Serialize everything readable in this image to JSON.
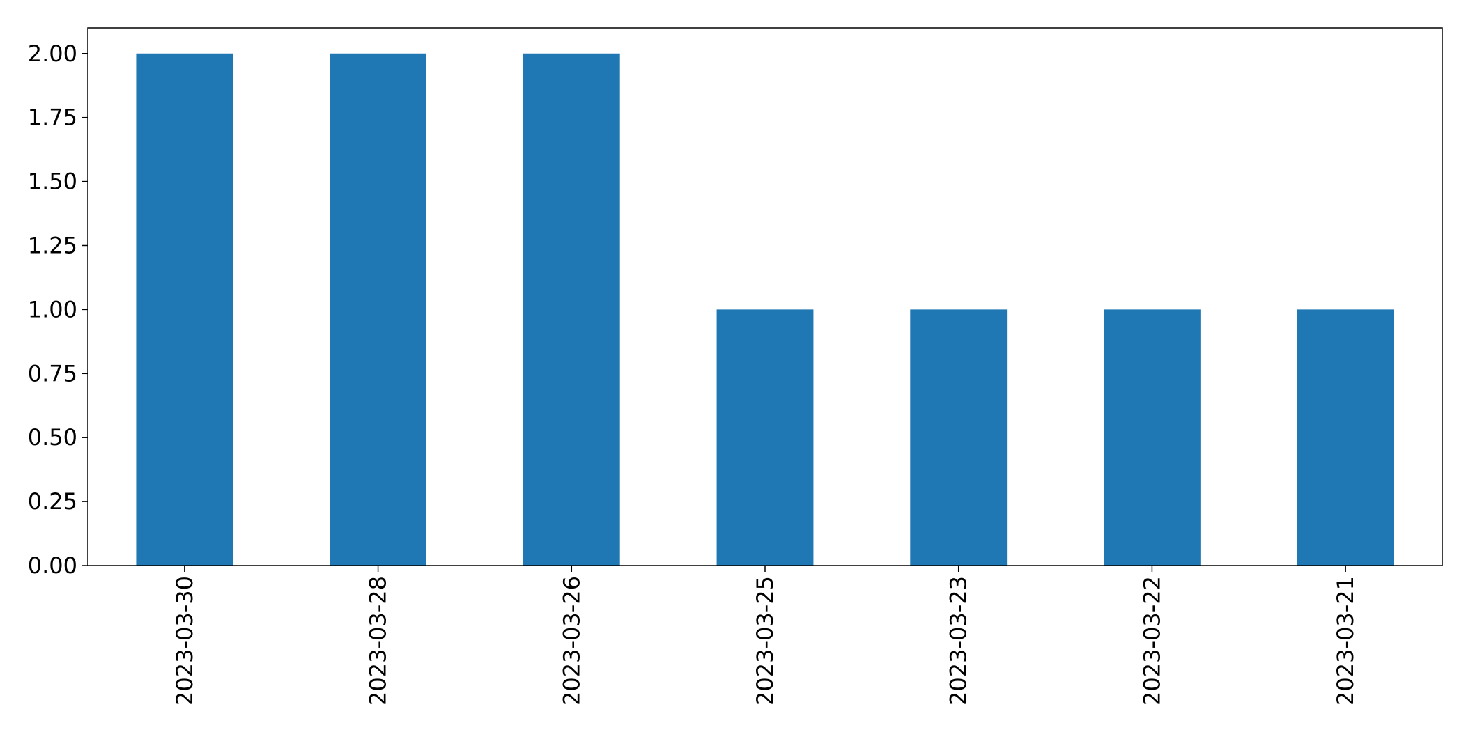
{
  "chart_data": {
    "type": "bar",
    "categories": [
      "2023-03-30",
      "2023-03-28",
      "2023-03-26",
      "2023-03-25",
      "2023-03-23",
      "2023-03-22",
      "2023-03-21"
    ],
    "values": [
      2,
      2,
      2,
      1,
      1,
      1,
      1
    ],
    "title": "",
    "xlabel": "",
    "ylabel": "",
    "ylim": [
      0,
      2.1
    ],
    "yticks": [
      "0.00",
      "0.25",
      "0.50",
      "0.75",
      "1.00",
      "1.25",
      "1.50",
      "1.75",
      "2.00"
    ],
    "bar_color": "#1f77b4",
    "grid": false,
    "legend": "none"
  }
}
